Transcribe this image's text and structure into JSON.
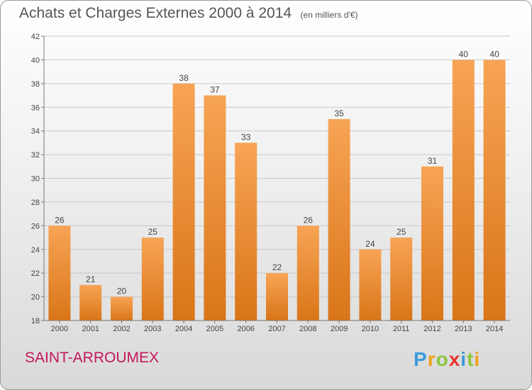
{
  "header": {
    "title": "Achats et Charges Externes 2000 à 2014",
    "units": "(en milliers d'€)"
  },
  "footer": {
    "city": "SAINT-ARROUMEX",
    "logo_letters": [
      "P",
      "r",
      "o",
      "x",
      "i",
      "t",
      "i"
    ],
    "logo_colors": [
      "#3b9ad9",
      "#f0a21b",
      "#8cc63f",
      "#e8362d",
      "#3b9ad9",
      "#8cc63f",
      "#f0a21b"
    ]
  },
  "colors": {
    "bar_top": "#f7a455",
    "bar_bottom": "#d97518",
    "grid": "#c8c8c8",
    "city": "#c2185b"
  },
  "chart_data": {
    "type": "bar",
    "title": "Achats et Charges Externes 2000 à 2014",
    "subtitle": "(en milliers d'€)",
    "categories": [
      "2000",
      "2001",
      "2002",
      "2003",
      "2004",
      "2005",
      "2006",
      "2007",
      "2008",
      "2009",
      "2010",
      "2011",
      "2012",
      "2013",
      "2014"
    ],
    "values": [
      26,
      21,
      20,
      25,
      38,
      37,
      33,
      22,
      26,
      35,
      24,
      25,
      31,
      40,
      40
    ],
    "ylim": [
      18,
      42
    ],
    "yticks": [
      18,
      20,
      22,
      24,
      26,
      28,
      30,
      32,
      34,
      36,
      38,
      40,
      42
    ],
    "grid": true
  }
}
